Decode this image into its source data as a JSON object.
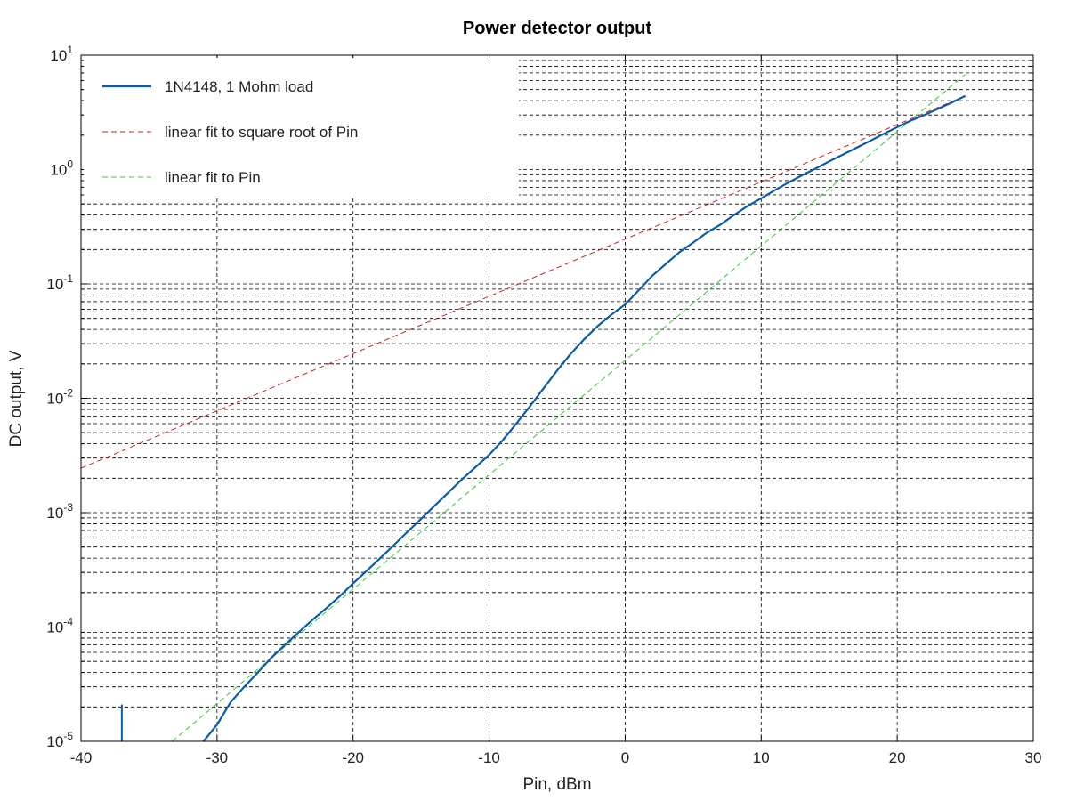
{
  "chart_data": {
    "type": "line",
    "title": "Power detector output",
    "xlabel": "Pin, dBm",
    "ylabel": "DC output, V",
    "xlim": [
      -40,
      30
    ],
    "ylim": [
      1e-05,
      10
    ],
    "yscale": "log",
    "grid": true,
    "legend_position": "top-left",
    "x_ticks": [
      -40,
      -30,
      -20,
      -10,
      0,
      10,
      20,
      30
    ],
    "x_tick_labels": [
      "-40",
      "-30",
      "-20",
      "-10",
      "0",
      "10",
      "20",
      "30"
    ],
    "y_ticks": [
      1e-05,
      0.0001,
      0.001,
      0.01,
      0.1,
      1,
      10
    ],
    "y_tick_labels": [
      {
        "base": "10",
        "exp": "-5"
      },
      {
        "base": "10",
        "exp": "-4"
      },
      {
        "base": "10",
        "exp": "-3"
      },
      {
        "base": "10",
        "exp": "-2"
      },
      {
        "base": "10",
        "exp": "-1"
      },
      {
        "base": "10",
        "exp": "0"
      },
      {
        "base": "10",
        "exp": "1"
      }
    ],
    "series": [
      {
        "name": "1N4148, 1 Mohm load",
        "color": "#0b5ca8",
        "style": "solid",
        "x": [
          -31,
          -30,
          -29,
          -28,
          -27,
          -26,
          -25,
          -24,
          -23,
          -22,
          -21,
          -20,
          -19,
          -18,
          -17,
          -16,
          -15,
          -14,
          -13,
          -12,
          -11,
          -10,
          -9,
          -8,
          -7,
          -6,
          -5,
          -4,
          -3,
          -2,
          -1,
          0,
          1,
          2,
          3,
          4,
          5,
          6,
          7,
          8,
          9,
          10,
          11,
          12,
          13,
          14,
          15,
          16,
          17,
          18,
          19,
          20,
          21,
          22,
          23,
          24,
          25
        ],
        "y": [
          1e-05,
          1.4e-05,
          2.2e-05,
          3e-05,
          4e-05,
          5.4e-05,
          7e-05,
          9e-05,
          0.000115,
          0.000145,
          0.000185,
          0.00024,
          0.00031,
          0.0004,
          0.00052,
          0.00068,
          0.00088,
          0.00115,
          0.0015,
          0.00195,
          0.0025,
          0.0032,
          0.0043,
          0.006,
          0.0085,
          0.0122,
          0.0175,
          0.0245,
          0.033,
          0.043,
          0.054,
          0.066,
          0.088,
          0.118,
          0.15,
          0.19,
          0.23,
          0.28,
          0.33,
          0.4,
          0.48,
          0.56,
          0.66,
          0.77,
          0.89,
          1.02,
          1.18,
          1.35,
          1.55,
          1.78,
          2.05,
          2.35,
          2.68,
          3.0,
          3.4,
          3.85,
          4.4
        ]
      },
      {
        "name": "linear fit to square root of Pin",
        "color": "#cc2222",
        "style": "dashed",
        "x": [
          -40,
          25
        ],
        "y": [
          0.00245,
          4.4
        ]
      },
      {
        "name": "linear fit to Pin",
        "color": "#33cc33",
        "style": "dashed",
        "x": [
          -33.3,
          25
        ],
        "y": [
          1e-05,
          6.8
        ]
      }
    ],
    "spike": {
      "x": [
        -37,
        -37
      ],
      "y": [
        2.1e-05,
        1e-05
      ]
    }
  }
}
